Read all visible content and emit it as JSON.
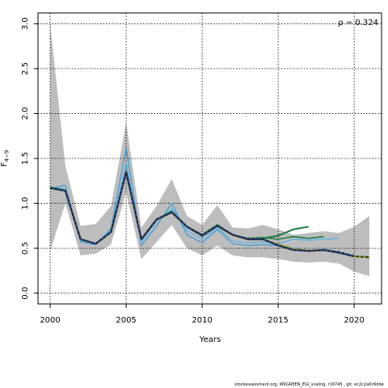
{
  "chart_data": {
    "type": "line",
    "xlabel": "Years",
    "ylabel": "F",
    "ylabel_sub": "4−9",
    "annotation": "ρ = 0.324",
    "xlim": [
      1999.2,
      2021.8
    ],
    "ylim": [
      -0.12,
      3.12
    ],
    "x_ticks": [
      2000,
      2005,
      2010,
      2015,
      2020
    ],
    "y_ticks": [
      0.0,
      0.5,
      1.0,
      1.5,
      2.0,
      2.5,
      3.0
    ],
    "grid": true,
    "colors": {
      "band": "#bdbdbd",
      "main": "#7a9a2e",
      "peels": [
        "#3a9ad9",
        "#56b4e9",
        "#1b7a3e",
        "#2e3a8c",
        "#6a3d9a",
        "#222222"
      ]
    },
    "confidence_band": {
      "x": [
        2000,
        2001,
        2002,
        2003,
        2004,
        2005,
        2006,
        2007,
        2008,
        2009,
        2010,
        2011,
        2012,
        2013,
        2014,
        2015,
        2016,
        2017,
        2018,
        2019,
        2020,
        2021
      ],
      "upper": [
        3.0,
        1.42,
        0.75,
        0.77,
        0.97,
        1.9,
        0.73,
        0.97,
        1.27,
        0.86,
        0.76,
        0.98,
        0.73,
        0.72,
        0.76,
        0.71,
        0.65,
        0.67,
        0.69,
        0.67,
        0.74,
        0.86
      ],
      "lower": [
        0.47,
        1.0,
        0.42,
        0.44,
        0.54,
        1.12,
        0.38,
        0.57,
        0.76,
        0.5,
        0.42,
        0.53,
        0.42,
        0.4,
        0.4,
        0.38,
        0.35,
        0.34,
        0.35,
        0.33,
        0.24,
        0.19
      ]
    },
    "series": [
      {
        "x": [
          2000,
          2001,
          2002,
          2003,
          2004,
          2005,
          2006,
          2007,
          2008,
          2009,
          2010,
          2011,
          2012,
          2013,
          2014,
          2015,
          2016,
          2017,
          2018,
          2019,
          2020,
          2021
        ],
        "values": [
          1.17,
          1.14,
          0.6,
          0.55,
          0.68,
          1.35,
          0.6,
          0.82,
          0.9,
          0.74,
          0.64,
          0.75,
          0.65,
          0.6,
          0.6,
          0.54,
          0.49,
          0.47,
          0.48,
          0.45,
          0.41,
          0.4
        ],
        "style": "main"
      },
      {
        "x": [
          2000,
          2001,
          2002,
          2003,
          2004,
          2005,
          2006,
          2007,
          2008,
          2009,
          2010,
          2011,
          2012,
          2013,
          2014,
          2015,
          2016,
          2017,
          2018,
          2019,
          2020
        ],
        "values": [
          1.17,
          1.2,
          0.57,
          0.54,
          0.72,
          1.62,
          0.53,
          0.75,
          1.0,
          0.65,
          0.56,
          0.71,
          0.55,
          0.53,
          0.54,
          0.53,
          0.5,
          0.47,
          0.49,
          0.46,
          0.42
        ],
        "style": "peel1"
      },
      {
        "x": [
          2000,
          2001,
          2002,
          2003,
          2004,
          2005,
          2006,
          2007,
          2008,
          2009,
          2010,
          2011,
          2012,
          2013,
          2014,
          2015,
          2016,
          2017,
          2018,
          2019
        ],
        "values": [
          1.18,
          1.16,
          0.59,
          0.55,
          0.7,
          1.45,
          0.57,
          0.8,
          0.94,
          0.7,
          0.6,
          0.73,
          0.58,
          0.56,
          0.57,
          0.55,
          0.6,
          0.59,
          0.6,
          0.61
        ],
        "style": "peel2"
      },
      {
        "x": [
          2000,
          2001,
          2002,
          2003,
          2004,
          2005,
          2006,
          2007,
          2008,
          2009,
          2010,
          2011,
          2012,
          2013,
          2014,
          2015,
          2016,
          2017,
          2018
        ],
        "values": [
          1.18,
          1.14,
          0.6,
          0.55,
          0.68,
          1.36,
          0.6,
          0.82,
          0.91,
          0.74,
          0.65,
          0.76,
          0.65,
          0.61,
          0.62,
          0.6,
          0.63,
          0.61,
          0.63
        ],
        "style": "peel3"
      },
      {
        "x": [
          2000,
          2001,
          2002,
          2003,
          2004,
          2005,
          2006,
          2007,
          2008,
          2009,
          2010,
          2011,
          2012,
          2013,
          2014,
          2015,
          2016,
          2017
        ],
        "values": [
          1.18,
          1.14,
          0.6,
          0.55,
          0.68,
          1.35,
          0.6,
          0.82,
          0.91,
          0.74,
          0.65,
          0.76,
          0.65,
          0.61,
          0.61,
          0.64,
          0.71,
          0.74
        ],
        "style": "peel4"
      },
      {
        "x": [
          2000,
          2001,
          2002,
          2003,
          2004,
          2005,
          2006,
          2007,
          2008,
          2009,
          2010,
          2011,
          2012,
          2013,
          2014,
          2015,
          2016,
          2017,
          2018,
          2019,
          2020
        ],
        "values": [
          1.17,
          1.14,
          0.6,
          0.55,
          0.68,
          1.35,
          0.6,
          0.82,
          0.9,
          0.74,
          0.64,
          0.75,
          0.65,
          0.6,
          0.6,
          0.53,
          0.48,
          0.47,
          0.48,
          0.45,
          0.41
        ],
        "style": "peel5"
      },
      {
        "x": [
          2000,
          2001,
          2002,
          2003,
          2004,
          2005,
          2006,
          2007,
          2008,
          2009,
          2010,
          2011,
          2012,
          2013,
          2014,
          2015,
          2016,
          2017,
          2018,
          2019,
          2020,
          2021
        ],
        "values": [
          1.17,
          1.14,
          0.6,
          0.55,
          0.68,
          1.35,
          0.6,
          0.82,
          0.9,
          0.74,
          0.64,
          0.75,
          0.65,
          0.6,
          0.6,
          0.53,
          0.48,
          0.47,
          0.48,
          0.46,
          0.41,
          0.4
        ],
        "style": "peel6"
      }
    ]
  },
  "footer": {
    "text": "stockassessment.org, WKGREEN_EGI_scaling, r16745 , git: ec2c2a0c6dde"
  }
}
